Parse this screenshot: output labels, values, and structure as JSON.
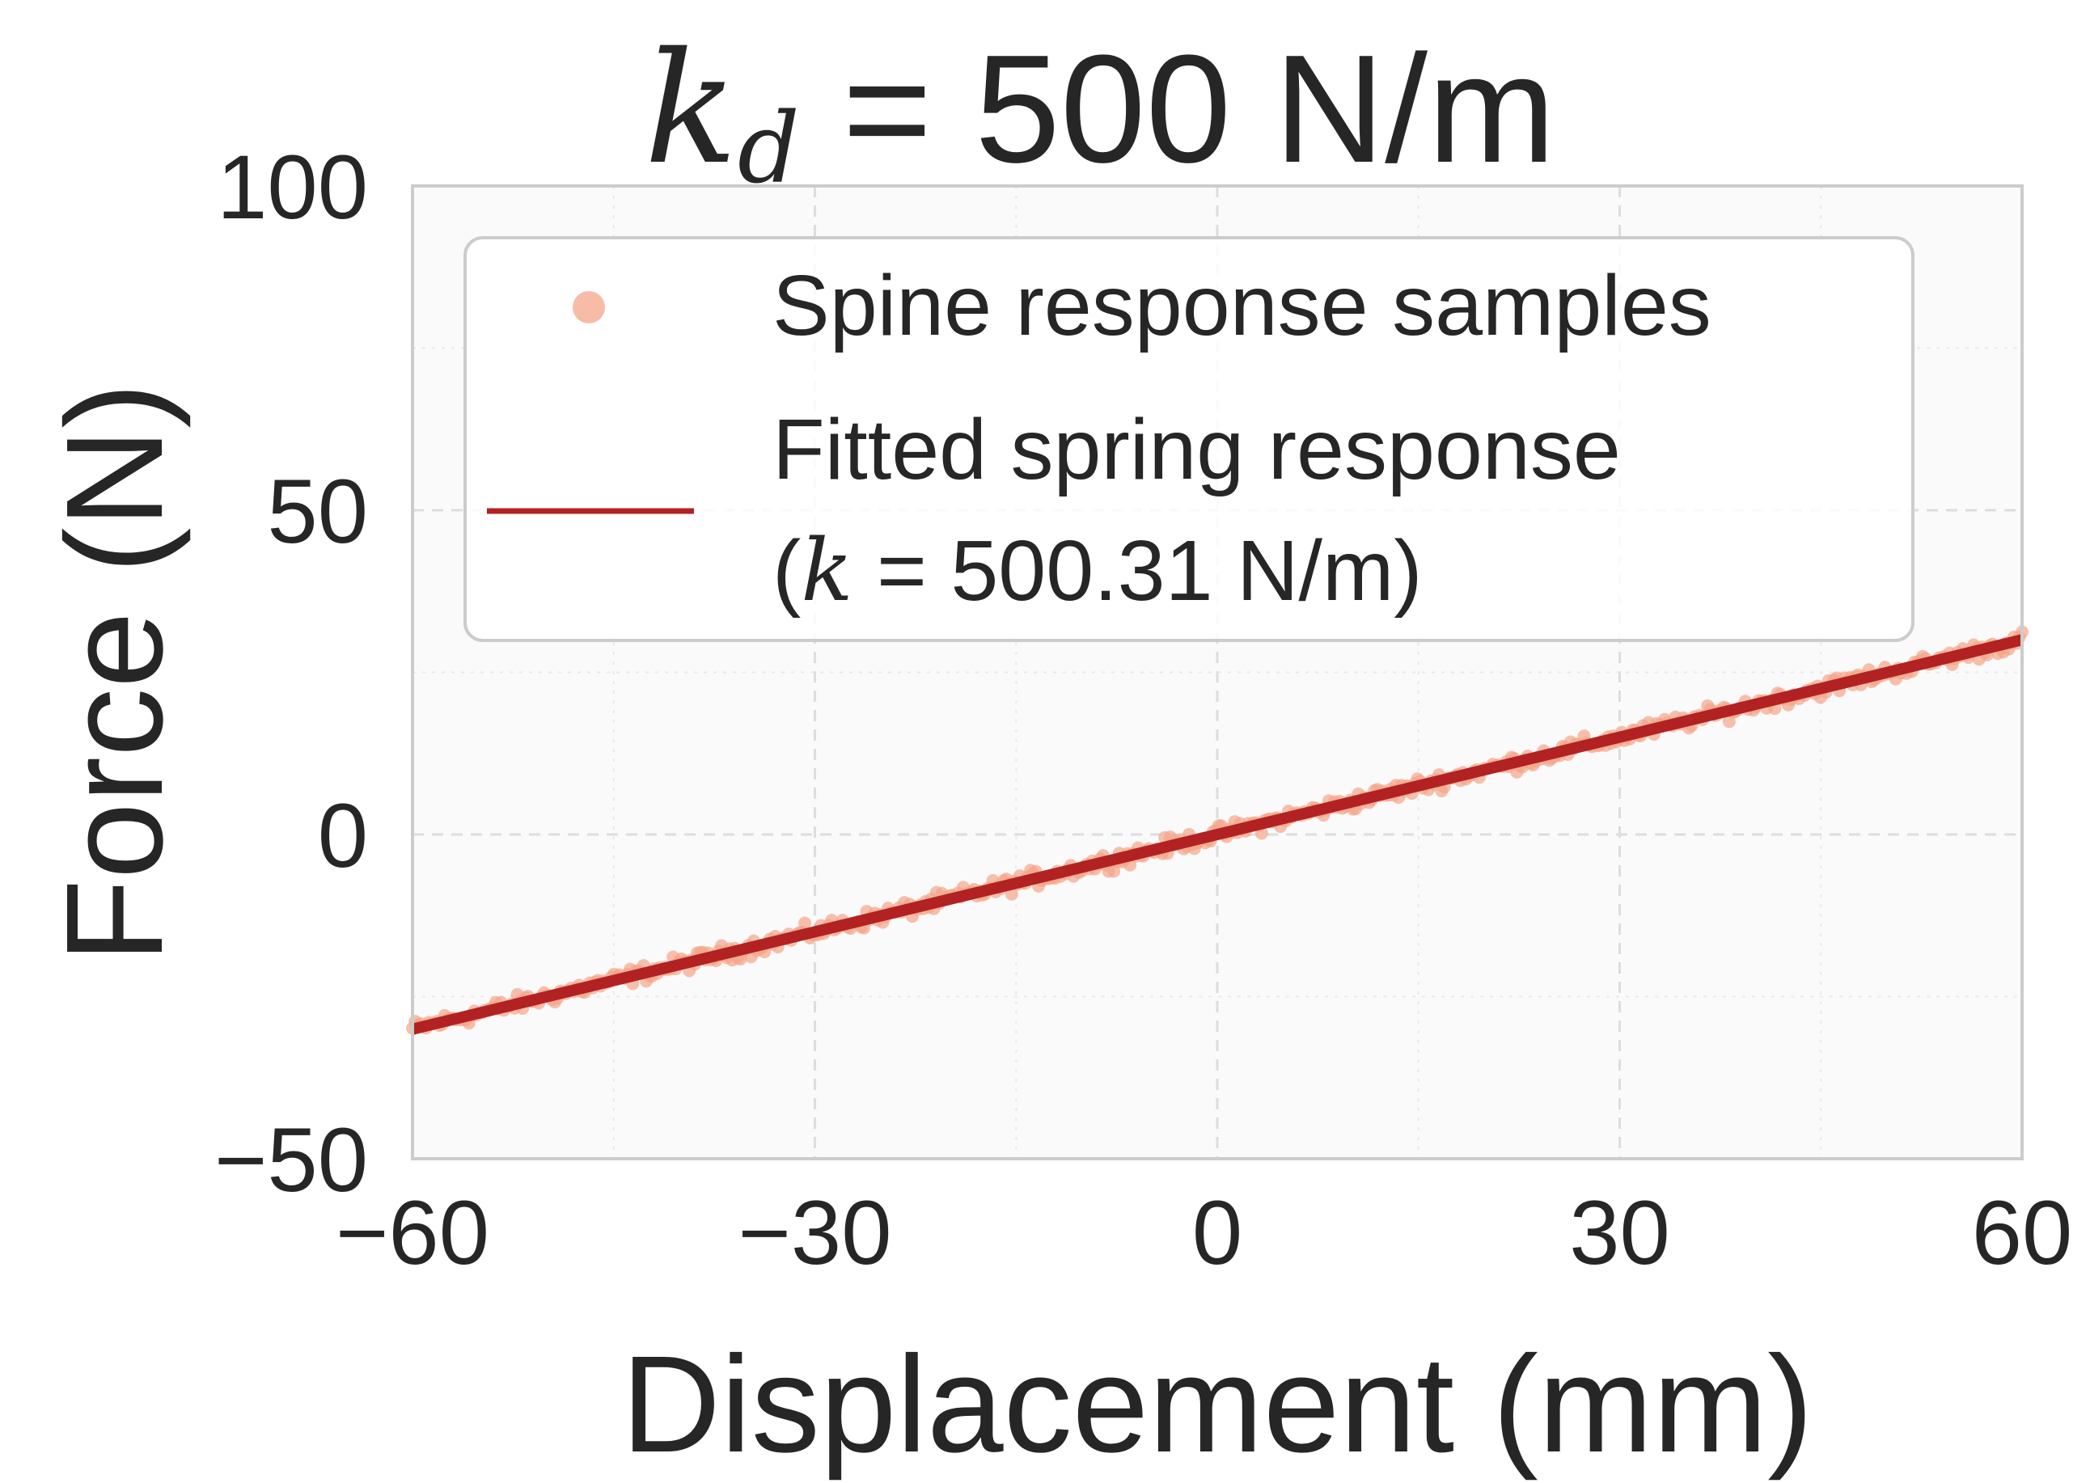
{
  "chart_data": {
    "type": "scatter",
    "title": {
      "symbol": "k",
      "subscript": "d",
      "rest": " = 500 N/m"
    },
    "xlabel": "Displacement (mm)",
    "ylabel": "Force (N)",
    "xlim": [
      -60,
      60
    ],
    "ylim": [
      -50,
      100
    ],
    "xticks": [
      -60,
      -30,
      0,
      30,
      60
    ],
    "yticks": [
      -50,
      0,
      50,
      100
    ],
    "xtick_labels": [
      "−60",
      "−30",
      "0",
      "30",
      "60"
    ],
    "ytick_labels": [
      "−50",
      "0",
      "50",
      "100"
    ],
    "grid": true,
    "legend": {
      "placement": "upper-left",
      "entries": [
        {
          "label": "Spine response samples"
        },
        {
          "label_line1": "Fitted spring response",
          "label_line2_open": "(",
          "label_line2_symbol": "k",
          "label_line2_rest": " = 500.31 N/m)"
        }
      ]
    },
    "series": [
      {
        "name": "Spine response samples",
        "kind": "scatter",
        "color": "#f4a58a",
        "x_range": [
          -60,
          60
        ],
        "slope_N_per_mm": 0.5,
        "noise_N": 0.8,
        "count": 600
      },
      {
        "name": "Fitted spring response",
        "kind": "line",
        "color": "#b22222",
        "x": [
          -60,
          60
        ],
        "y": [
          -30.02,
          30.02
        ],
        "k_N_per_m": 500.31
      }
    ]
  }
}
